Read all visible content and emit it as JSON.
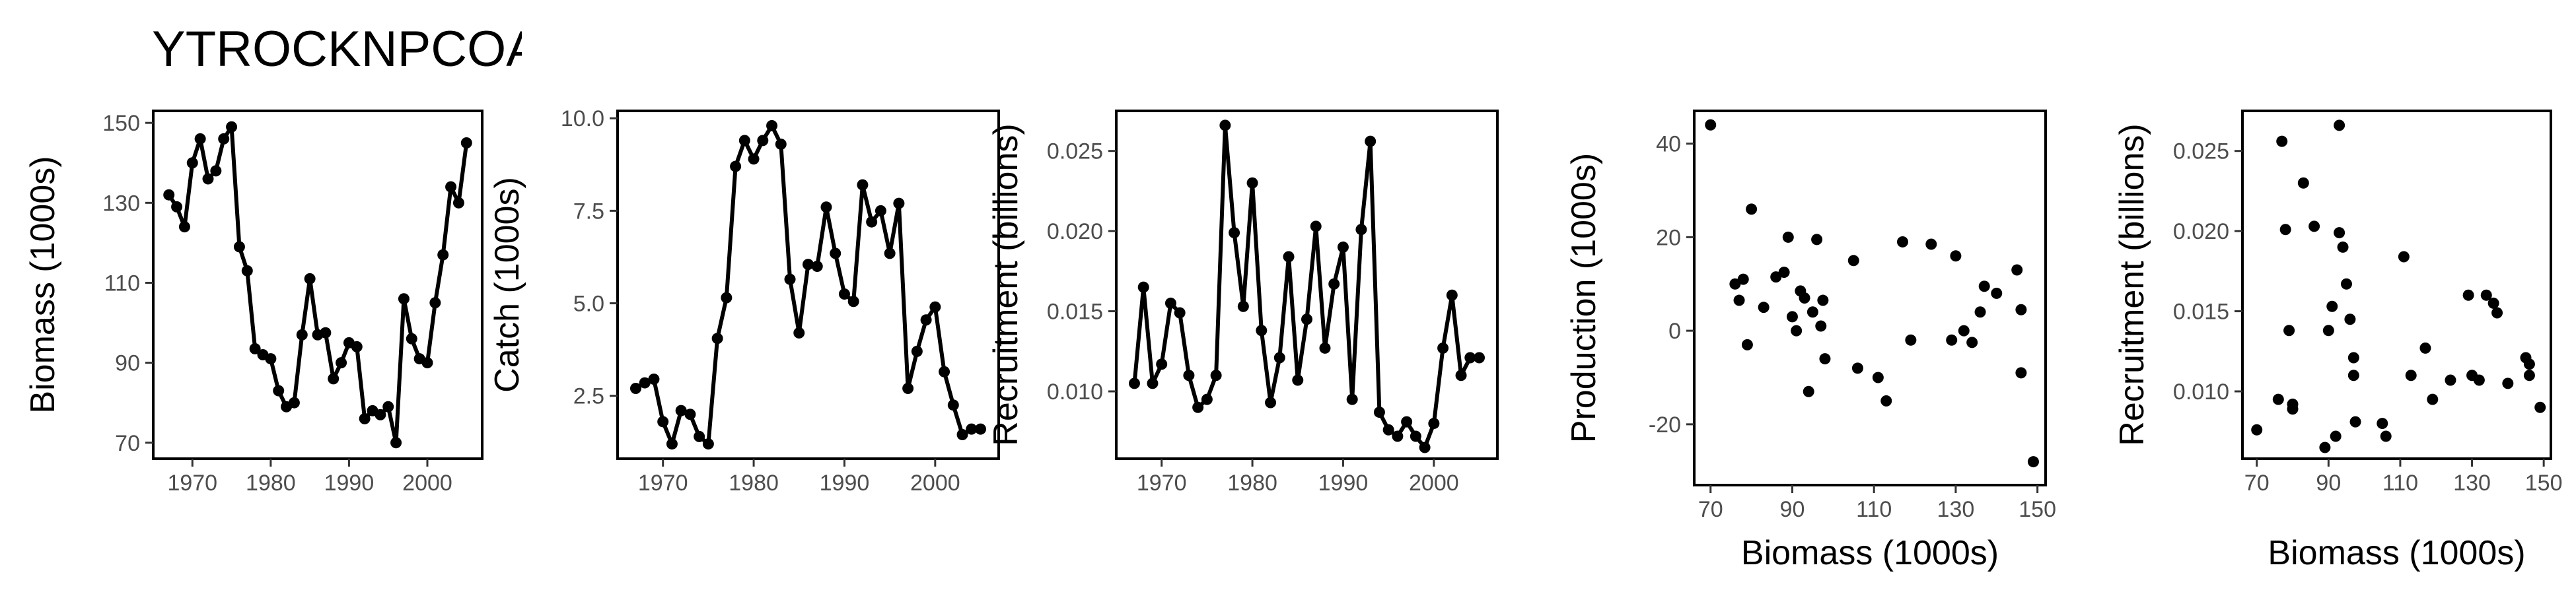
{
  "title": "YTROCKNPCOA",
  "chart_data": [
    {
      "type": "line",
      "xlabel": "",
      "ylabel": "Biomass (1000s)",
      "xlim": [
        1965,
        2007
      ],
      "ylim": [
        66,
        153
      ],
      "xticks": [
        1970,
        1980,
        1990,
        2000
      ],
      "yticks": [
        70,
        90,
        110,
        130,
        150
      ],
      "ytick_labels": [
        "70",
        "90",
        "110",
        "130",
        "150"
      ],
      "x": [
        1967,
        1968,
        1969,
        1970,
        1971,
        1972,
        1973,
        1974,
        1975,
        1976,
        1977,
        1978,
        1979,
        1980,
        1981,
        1982,
        1983,
        1984,
        1985,
        1986,
        1987,
        1988,
        1989,
        1990,
        1991,
        1992,
        1993,
        1994,
        1995,
        1996,
        1997,
        1998,
        1999,
        2000,
        2001,
        2002,
        2003,
        2004,
        2005
      ],
      "y": [
        132,
        129,
        124,
        140,
        146,
        136,
        138,
        146,
        149,
        119,
        113,
        93.5,
        92,
        91,
        83,
        79,
        80,
        97,
        111,
        97,
        97.5,
        86,
        90,
        95,
        94,
        76,
        78,
        77,
        79,
        70,
        106,
        96,
        91,
        90,
        105,
        117,
        134,
        130,
        145
      ]
    },
    {
      "type": "line",
      "xlabel": "",
      "ylabel": "Catch (1000s)",
      "xlim": [
        1965,
        2007
      ],
      "ylim": [
        0.8,
        10.2
      ],
      "xticks": [
        1970,
        1980,
        1990,
        2000
      ],
      "yticks": [
        2.5,
        5.0,
        7.5,
        10.0
      ],
      "ytick_labels": [
        "2.5",
        "5.0",
        "7.5",
        "10.0"
      ],
      "x": [
        1967,
        1968,
        1969,
        1970,
        1971,
        1972,
        1973,
        1974,
        1975,
        1976,
        1977,
        1978,
        1979,
        1980,
        1981,
        1982,
        1983,
        1984,
        1985,
        1986,
        1987,
        1988,
        1989,
        1990,
        1991,
        1992,
        1993,
        1994,
        1995,
        1996,
        1997,
        1998,
        1999,
        2000,
        2001,
        2002,
        2003,
        2004,
        2005
      ],
      "y": [
        2.7,
        2.85,
        2.95,
        1.8,
        1.2,
        2.1,
        2.0,
        1.4,
        1.2,
        4.05,
        5.15,
        8.7,
        9.4,
        8.9,
        9.4,
        9.8,
        9.3,
        5.65,
        4.2,
        6.05,
        6.0,
        7.6,
        6.35,
        5.25,
        5.05,
        8.2,
        7.2,
        7.5,
        6.35,
        7.7,
        2.7,
        3.7,
        4.55,
        4.9,
        3.15,
        2.25,
        1.45,
        1.6,
        1.6
      ]
    },
    {
      "type": "line",
      "xlabel": "",
      "ylabel": "Recruitment (billions)",
      "xlim": [
        1965,
        2007
      ],
      "ylim": [
        0.0058,
        0.0275
      ],
      "xticks": [
        1970,
        1980,
        1990,
        2000
      ],
      "yticks": [
        0.01,
        0.015,
        0.02,
        0.025
      ],
      "ytick_labels": [
        "0.010",
        "0.015",
        "0.020",
        "0.025"
      ],
      "x": [
        1967,
        1968,
        1969,
        1970,
        1971,
        1972,
        1973,
        1974,
        1975,
        1976,
        1977,
        1978,
        1979,
        1980,
        1981,
        1982,
        1983,
        1984,
        1985,
        1986,
        1987,
        1988,
        1989,
        1990,
        1991,
        1992,
        1993,
        1994,
        1995,
        1996,
        1997,
        1998,
        1999,
        2000,
        2001,
        2002,
        2003,
        2004,
        2005
      ],
      "y": [
        0.0105,
        0.0165,
        0.0105,
        0.0117,
        0.0155,
        0.0149,
        0.011,
        0.009,
        0.0095,
        0.011,
        0.0266,
        0.0199,
        0.0153,
        0.023,
        0.0138,
        0.0093,
        0.0121,
        0.0184,
        0.0107,
        0.0145,
        0.0203,
        0.0127,
        0.0167,
        0.019,
        0.0095,
        0.0201,
        0.0256,
        0.0087,
        0.0076,
        0.0072,
        0.0081,
        0.0072,
        0.0065,
        0.008,
        0.0127,
        0.016,
        0.011,
        0.0121,
        0.0121
      ]
    },
    {
      "type": "scatter",
      "xlabel": "Biomass (1000s)",
      "ylabel": "Production (1000s)",
      "xlim": [
        66,
        152
      ],
      "ylim": [
        -33,
        47
      ],
      "xticks": [
        70,
        90,
        110,
        130,
        150
      ],
      "yticks": [
        -20,
        0,
        20,
        40
      ],
      "ytick_labels": [
        "-20",
        "0",
        "20",
        "40"
      ],
      "points": [
        [
          70,
          44
        ],
        [
          76,
          10
        ],
        [
          77,
          6.5
        ],
        [
          78,
          11
        ],
        [
          79,
          -3
        ],
        [
          80,
          26
        ],
        [
          83,
          5
        ],
        [
          86,
          11.5
        ],
        [
          88,
          12.5
        ],
        [
          89,
          20
        ],
        [
          90,
          3
        ],
        [
          91,
          0
        ],
        [
          92,
          8.5
        ],
        [
          93,
          7
        ],
        [
          94,
          -13
        ],
        [
          95,
          4
        ],
        [
          96,
          19.5
        ],
        [
          97,
          1
        ],
        [
          97.5,
          6.5
        ],
        [
          98,
          -6
        ],
        [
          105,
          15
        ],
        [
          106,
          -8
        ],
        [
          111,
          -10
        ],
        [
          113,
          -15
        ],
        [
          117,
          19
        ],
        [
          119,
          -2
        ],
        [
          124,
          18.5
        ],
        [
          129,
          -2
        ],
        [
          130,
          16
        ],
        [
          132,
          0
        ],
        [
          134,
          -2.5
        ],
        [
          136,
          4
        ],
        [
          137,
          9.5
        ],
        [
          140,
          8
        ],
        [
          145,
          13
        ],
        [
          146,
          4.5
        ],
        [
          146,
          -9
        ],
        [
          149,
          -28
        ]
      ]
    },
    {
      "type": "scatter",
      "xlabel": "Biomass (1000s)",
      "ylabel": "Recruitment (billions)",
      "xlim": [
        66,
        152
      ],
      "ylim": [
        0.0058,
        0.0275
      ],
      "xticks": [
        70,
        90,
        110,
        130,
        150
      ],
      "yticks": [
        0.01,
        0.015,
        0.02,
        0.025
      ],
      "ytick_labels": [
        "0.010",
        "0.015",
        "0.020",
        "0.025"
      ],
      "points": [
        [
          70,
          0.0076
        ],
        [
          76,
          0.0095
        ],
        [
          77,
          0.0256
        ],
        [
          78,
          0.0201
        ],
        [
          79,
          0.0138
        ],
        [
          80,
          0.0092
        ],
        [
          80,
          0.0089
        ],
        [
          83,
          0.023
        ],
        [
          86,
          0.0203
        ],
        [
          89,
          0.0065
        ],
        [
          90,
          0.0138
        ],
        [
          91,
          0.0153
        ],
        [
          92,
          0.0072
        ],
        [
          93,
          0.0199
        ],
        [
          93,
          0.0266
        ],
        [
          94,
          0.019
        ],
        [
          95,
          0.0167
        ],
        [
          96,
          0.0145
        ],
        [
          97,
          0.0121
        ],
        [
          97,
          0.011
        ],
        [
          97.5,
          0.0081
        ],
        [
          105,
          0.008
        ],
        [
          106,
          0.0072
        ],
        [
          111,
          0.0184
        ],
        [
          113,
          0.011
        ],
        [
          117,
          0.0127
        ],
        [
          119,
          0.0095
        ],
        [
          124,
          0.0107
        ],
        [
          129,
          0.016
        ],
        [
          130,
          0.011
        ],
        [
          132,
          0.0107
        ],
        [
          134,
          0.016
        ],
        [
          136,
          0.0155
        ],
        [
          137,
          0.0149
        ],
        [
          140,
          0.0105
        ],
        [
          145,
          0.0121
        ],
        [
          146,
          0.0117
        ],
        [
          146,
          0.011
        ],
        [
          149,
          0.009
        ]
      ]
    }
  ]
}
